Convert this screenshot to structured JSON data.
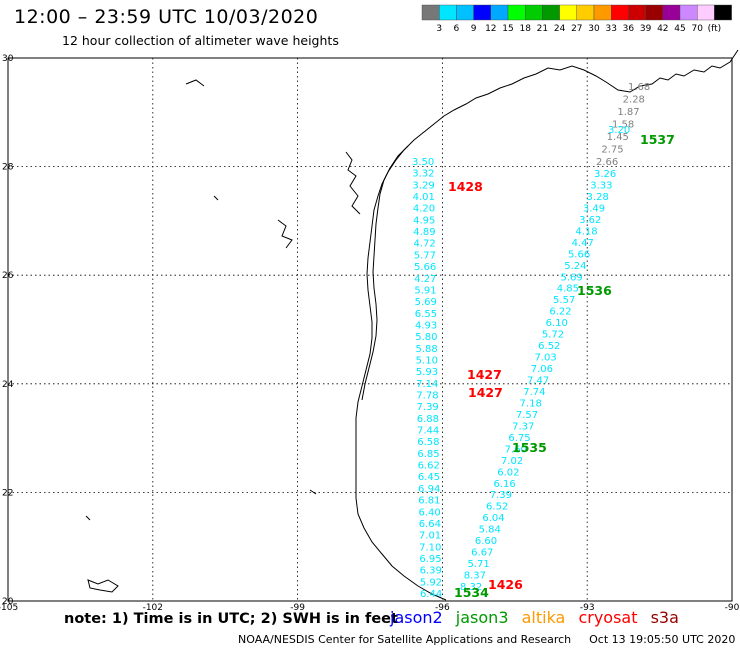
{
  "header": {
    "title": "12:00 – 23:59 UTC 10/03/2020",
    "subtitle": "12 hour collection of altimeter wave heights"
  },
  "colors": {
    "gray": "#808080",
    "cyan": "#00e6ff",
    "blue": "#0000ff",
    "green": "#009900",
    "orange": "#ff9900",
    "red": "#ff0000",
    "darkred": "#990000"
  },
  "legend": {
    "swatches": [
      "#777777",
      "#00e6ff",
      "#00c0ff",
      "#0000ff",
      "#00a8ff",
      "#00ff00",
      "#00cc00",
      "#009900",
      "#ffff00",
      "#ffcc00",
      "#ff9900",
      "#ff0000",
      "#cc0000",
      "#990000",
      "#990099",
      "#cc88ff",
      "#ffccff",
      "#000000"
    ],
    "labels": [
      "3",
      "6",
      "9",
      "12",
      "15",
      "18",
      "21",
      "24",
      "27",
      "30",
      "33",
      "36",
      "39",
      "42",
      "45",
      "70",
      "(ft)"
    ]
  },
  "axes": {
    "lon_labels": [
      "-105",
      "-102",
      "-99",
      "-96",
      "-93",
      "-90"
    ],
    "lat_labels": [
      "30",
      "28",
      "26",
      "24",
      "22",
      "20"
    ]
  },
  "footer": {
    "note": "note:  1) Time is in UTC;  2) SWH is in feet",
    "satellites": [
      {
        "name": "jason2",
        "color": "#0000ff"
      },
      {
        "name": "jason3",
        "color": "#009900"
      },
      {
        "name": "altika",
        "color": "#ff9900"
      },
      {
        "name": "cryosat",
        "color": "#ff0000"
      },
      {
        "name": "s3a",
        "color": "#990000"
      }
    ],
    "credit": "NOAA/NESDIS Center for Satellite Applications and Research",
    "timestamp": "Oct 13 19:05:50 UTC 2020"
  },
  "tracks": [
    {
      "id": "track-left",
      "color": "#00e6ff",
      "values": [
        "3.50",
        "3.32",
        "3.29",
        "4.01",
        "4.20",
        "4.95",
        "4.89",
        "4.72",
        "5.77",
        "5.66",
        "4.27",
        "5.91",
        "5.69",
        "6.55",
        "4.93",
        "5.80",
        "5.88",
        "5.10",
        "5.93",
        "7.14",
        "7.78",
        "7.39",
        "6.88",
        "7.44",
        "6.58",
        "6.85",
        "6.62",
        "6.45",
        "6.94",
        "6.81",
        "6.40",
        "6.64",
        "7.01",
        "7.10",
        "6.95",
        "6.39",
        "5.92",
        "6.44"
      ]
    },
    {
      "id": "track-right",
      "color": "#00e6ff",
      "values": [
        "3.26",
        "3.33",
        "3.28",
        "3.49",
        "3.62",
        "4.18",
        "4.47",
        "5.66",
        "5.24",
        "5.69",
        "4.85",
        "5.57",
        "6.22",
        "6.10",
        "5.72",
        "6.52",
        "7.03",
        "7.06",
        "7.47",
        "7.74",
        "7.18",
        "7.57",
        "7.37",
        "6.75",
        "7.60",
        "7.02",
        "6.02",
        "6.16",
        "7.39",
        "6.52",
        "6.04",
        "5.84",
        "6.60",
        "6.67",
        "5.71",
        "8.37",
        "8.32"
      ]
    },
    {
      "id": "track-gray",
      "color": "#808080",
      "values": [
        "1.68",
        "2.28",
        "1.87",
        "1.58",
        "1.45",
        "2.75",
        "2.66"
      ]
    }
  ],
  "times": [
    {
      "label": "1428",
      "color": "#ff0000"
    },
    {
      "label": "1427",
      "color": "#ff0000"
    },
    {
      "label": "1427",
      "color": "#ff0000"
    },
    {
      "label": "1426",
      "color": "#ff0000"
    },
    {
      "label": "1537",
      "color": "#009900"
    },
    {
      "label": "1536",
      "color": "#009900"
    },
    {
      "label": "1535",
      "color": "#009900"
    },
    {
      "label": "1534",
      "color": "#009900"
    }
  ],
  "extra_values": [
    {
      "label": "3.20",
      "color": "#00e6ff"
    }
  ]
}
